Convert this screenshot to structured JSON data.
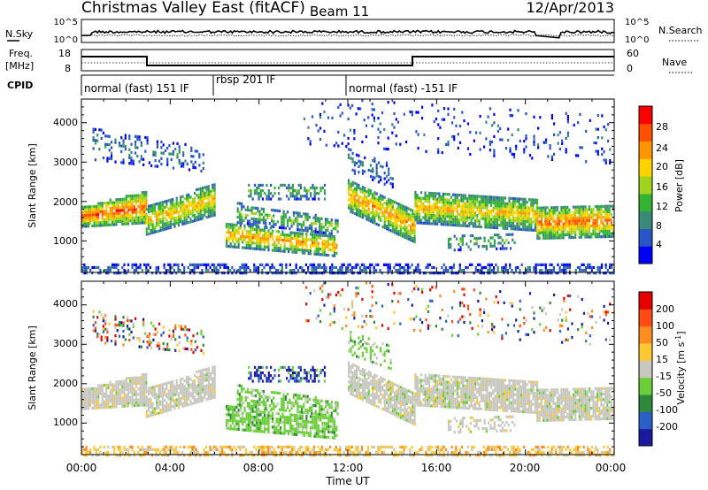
{
  "header": {
    "station": "Christmas Valley East (fitACF)",
    "beam": "Beam 11",
    "date": "12/Apr/2013"
  },
  "panels": {
    "nsky_label": "N.Sky",
    "nsky_ticks": [
      "10^5",
      "10^0"
    ],
    "nsearch_label": "N.Search",
    "nsearch_ticks": [
      "10^5",
      "10^0"
    ],
    "freq_label": "Freq.",
    "freq_unit": "[MHz]",
    "freq_ticks": [
      "18",
      "8"
    ],
    "nave_label": "Nave",
    "nave_ticks": [
      "60",
      "0"
    ],
    "cpid_label": "CPID",
    "cpid_segments": [
      {
        "label": "normal (fast) 151 IF",
        "start_h": 0,
        "end_h": 6
      },
      {
        "label": "rbsp 201 IF",
        "start_h": 6,
        "end_h": 12
      },
      {
        "label": "normal (fast) -151 IF",
        "start_h": 12,
        "end_h": 24
      }
    ]
  },
  "chart_data": [
    {
      "type": "heatmap",
      "title": "",
      "xlabel": "Time UT",
      "ylabel": "Slant Range [km]",
      "xlim": [
        0,
        24
      ],
      "ylim": [
        200,
        4600
      ],
      "x_ticks": [
        "00:00",
        "04:00",
        "08:00",
        "12:00",
        "16:00",
        "20:00",
        "00:00"
      ],
      "y_ticks": [
        "1000",
        "2000",
        "3000",
        "4000"
      ],
      "colorbar": {
        "label": "Power [dB]",
        "ticks": [
          "28",
          "24",
          "20",
          "16",
          "12",
          "8",
          "4"
        ],
        "colors": [
          "#0000ff",
          "#2855c8",
          "#3a8a78",
          "#32b432",
          "#a0d21e",
          "#ffd200",
          "#ff9600",
          "#ff5000",
          "#ff0000"
        ],
        "range": [
          0,
          30
        ]
      }
    },
    {
      "type": "heatmap",
      "title": "",
      "xlabel": "Time UT",
      "ylabel": "Slant Range [km]",
      "xlim": [
        0,
        24
      ],
      "ylim": [
        200,
        4600
      ],
      "x_ticks": [
        "00:00",
        "04:00",
        "08:00",
        "12:00",
        "16:00",
        "20:00",
        "00:00"
      ],
      "y_ticks": [
        "1000",
        "2000",
        "3000",
        "4000"
      ],
      "colorbar": {
        "label": "Velocity [m s",
        "label_sup": "-1",
        "label_end": "]",
        "ticks": [
          "200",
          "100",
          "50",
          "15",
          "-15",
          "-50",
          "-100",
          "-200"
        ],
        "colors": [
          "#1a1aa0",
          "#2a5fc8",
          "#2e8a3a",
          "#6ccf3a",
          "#c8c8c0",
          "#ffc832",
          "#ff8c1e",
          "#ff4b14",
          "#e60000"
        ],
        "range": [
          -250,
          250
        ]
      }
    }
  ],
  "colors": {
    "grey_scatter": "#c8c8c0",
    "line": "#000000"
  }
}
